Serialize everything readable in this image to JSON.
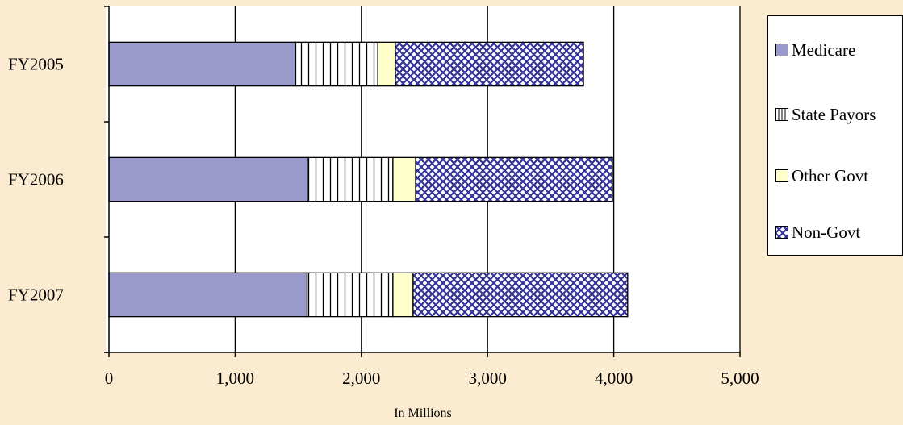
{
  "chart_data": {
    "type": "bar",
    "orientation": "horizontal",
    "stacked": true,
    "categories": [
      "FY2005",
      "FY2006",
      "FY2007"
    ],
    "series": [
      {
        "name": "Medicare",
        "values": [
          1480,
          1580,
          1570
        ],
        "color": "#9999cc",
        "pattern": "solid"
      },
      {
        "name": "State Payors",
        "values": [
          650,
          670,
          680
        ],
        "color": "#ffffff",
        "pattern": "vertical-lines"
      },
      {
        "name": "Other Govt",
        "values": [
          140,
          180,
          160
        ],
        "color": "#ffffcc",
        "pattern": "solid"
      },
      {
        "name": "Non-Govt",
        "values": [
          1490,
          1560,
          1700
        ],
        "color": "#333399",
        "pattern": "crosshatch"
      }
    ],
    "x_ticks": [
      "0",
      "1,000",
      "2,000",
      "3,000",
      "4,000",
      "5,000"
    ],
    "xlim": [
      0,
      5000
    ],
    "xlabel": "In Millions",
    "ylabel": "",
    "title": "",
    "grid": "vertical",
    "legend_position": "right"
  }
}
